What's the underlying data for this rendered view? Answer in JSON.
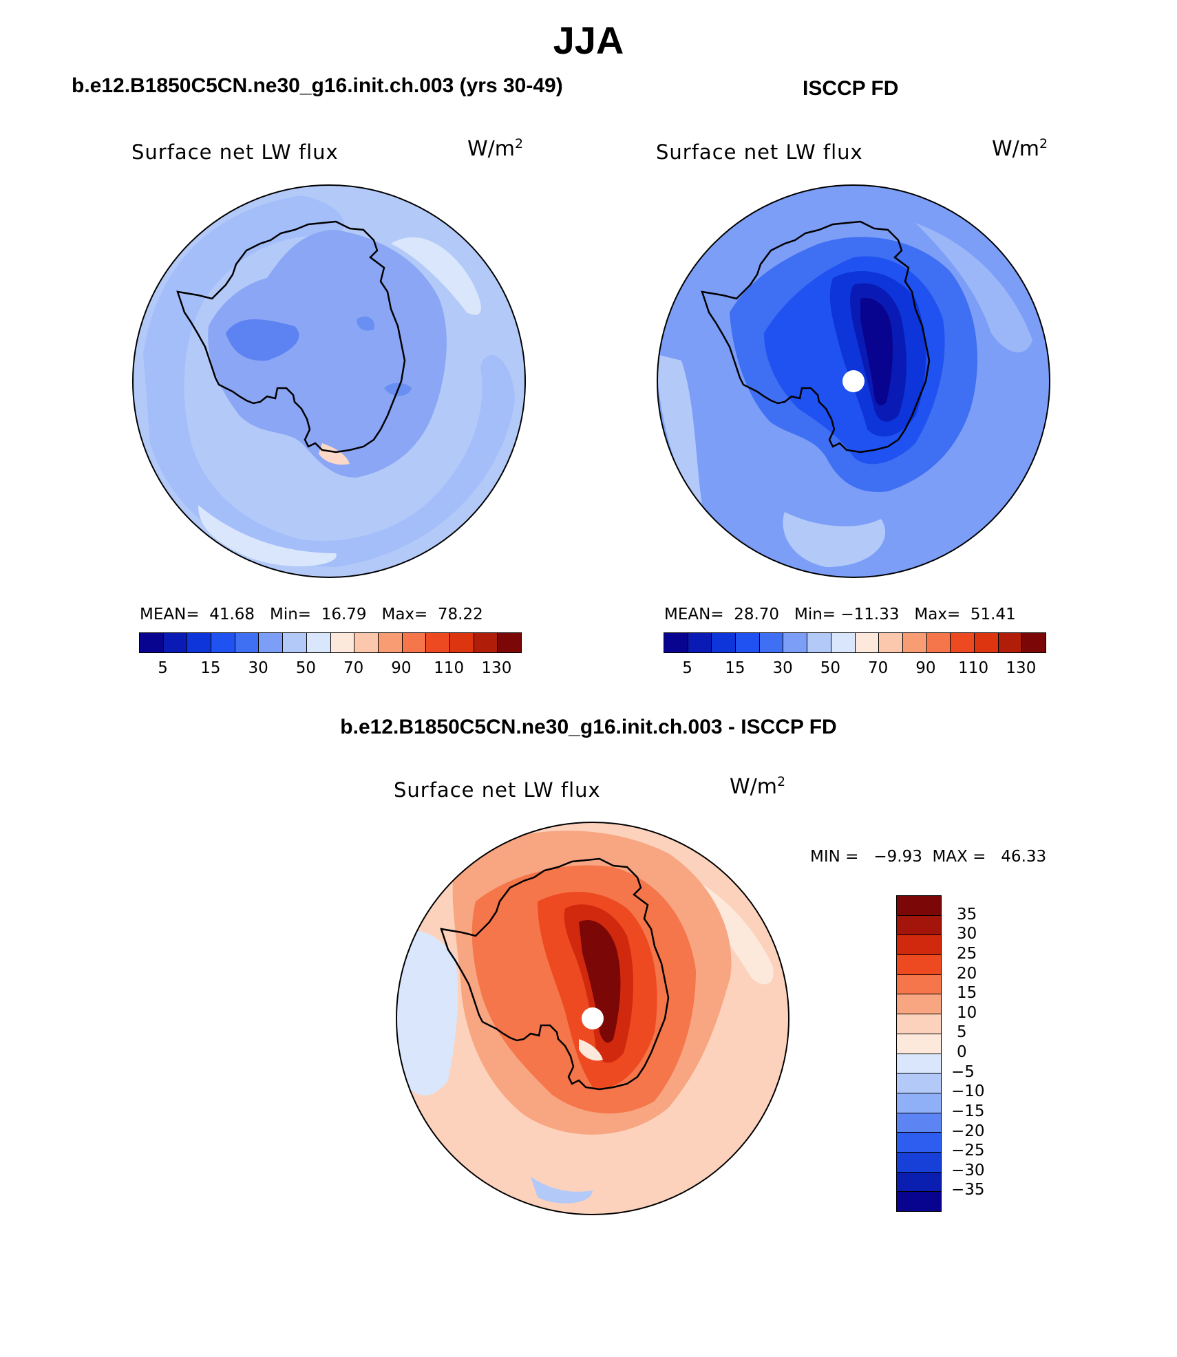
{
  "title": "JJA",
  "panels": [
    {
      "heading": "b.e12.B1850C5CN.ne30_g16.init.ch.003 (yrs 30-49)",
      "variable": "Surface net LW flux",
      "units": "W/m",
      "units_exp": "2",
      "stats": "MEAN=  41.68   Min=  16.79   Max=  78.22",
      "colorbar": {
        "colors": [
          "#08048f",
          "#0a1bb5",
          "#0d35d9",
          "#1f52f0",
          "#3f6ff2",
          "#7c9ef7",
          "#b3caf9",
          "#d9e6fb",
          "#fde8dc",
          "#fbc8ae",
          "#f89c74",
          "#f4764a",
          "#ee4a22",
          "#dd3510",
          "#b01e0a",
          "#7c0707"
        ],
        "tick_labels": [
          "5",
          "15",
          "30",
          "50",
          "70",
          "90",
          "110",
          "130"
        ]
      }
    },
    {
      "heading": "ISCCP FD",
      "variable": "Surface net LW flux",
      "units": "W/m",
      "units_exp": "2",
      "stats": "MEAN=  28.70   Min= −11.33   Max=  51.41",
      "colorbar": {
        "colors": [
          "#08048f",
          "#0a1bb5",
          "#0d35d9",
          "#1f52f0",
          "#3f6ff2",
          "#7c9ef7",
          "#b3caf9",
          "#d9e6fb",
          "#fde8dc",
          "#fbc8ae",
          "#f89c74",
          "#f4764a",
          "#ee4a22",
          "#dd3510",
          "#b01e0a",
          "#7c0707"
        ],
        "tick_labels": [
          "5",
          "15",
          "30",
          "50",
          "70",
          "90",
          "110",
          "130"
        ]
      }
    }
  ],
  "diff": {
    "heading": "b.e12.B1850C5CN.ne30_g16.init.ch.003 - ISCCP FD",
    "variable": "Surface net LW flux",
    "units": "W/m",
    "units_exp": "2",
    "stats": "MIN =   −9.93  MAX =   46.33",
    "colorbar": {
      "colors_top_to_bottom": [
        "#7c0707",
        "#a3140a",
        "#d0290d",
        "#ee4a22",
        "#f4764a",
        "#f8a682",
        "#fcd2bc",
        "#fde9dc",
        "#d9e6fb",
        "#b3caf9",
        "#8fb0f7",
        "#5c85f3",
        "#2e5ef0",
        "#1740d9",
        "#0a1eb0",
        "#08048f"
      ],
      "tick_labels": [
        "35",
        "30",
        "25",
        "20",
        "15",
        "10",
        "5",
        "0",
        "−5",
        "−10",
        "−15",
        "−20",
        "−25",
        "−30",
        "−35"
      ]
    }
  }
}
